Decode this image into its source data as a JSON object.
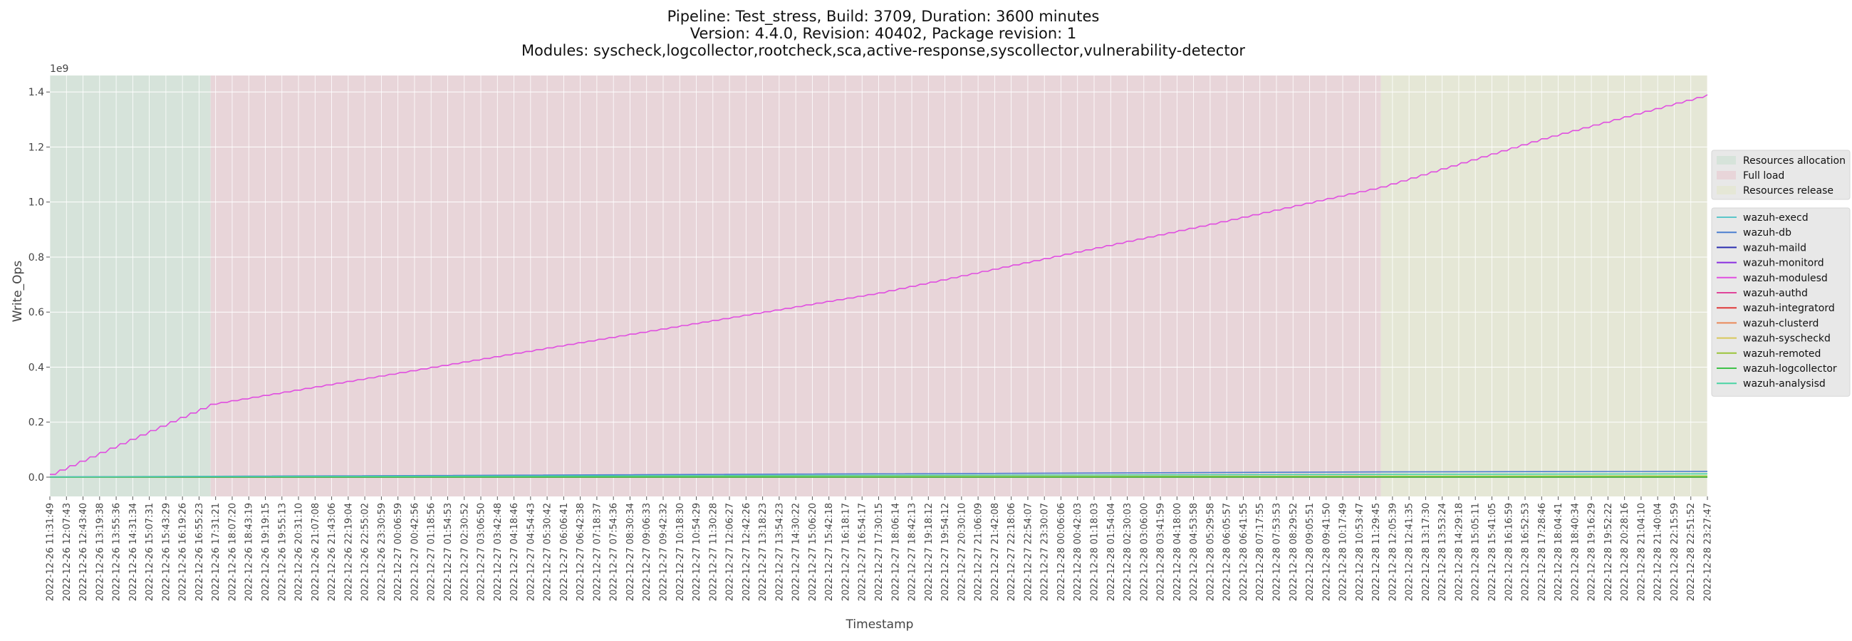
{
  "chart_data": {
    "type": "line",
    "title_lines": [
      "Pipeline: Test_stress, Build: 3709, Duration: 3600 minutes",
      "Version: 4.4.0, Revision: 40402, Package revision: 1",
      "Modules: syscheck,logcollector,rootcheck,sca,active-response,syscollector,vulnerability-detector"
    ],
    "xlabel": "Timestamp",
    "ylabel": "Write_Ops",
    "y_exponent_label": "1e9",
    "ylim": [
      -0.07,
      1.46
    ],
    "y_ticks": [
      {
        "value": 0.0,
        "label": "0.0"
      },
      {
        "value": 0.2,
        "label": "0.2"
      },
      {
        "value": 0.4,
        "label": "0.4"
      },
      {
        "value": 0.6,
        "label": "0.6"
      },
      {
        "value": 0.8,
        "label": "0.8"
      },
      {
        "value": 1.0,
        "label": "1.0"
      },
      {
        "value": 1.2,
        "label": "1.2"
      },
      {
        "value": 1.4,
        "label": "1.4"
      }
    ],
    "x_tick_labels": [
      "2022-12-26 11:31:49",
      "2022-12-26 12:07:43",
      "2022-12-26 12:43:40",
      "2022-12-26 13:19:38",
      "2022-12-26 13:55:36",
      "2022-12-26 14:31:34",
      "2022-12-26 15:07:31",
      "2022-12-26 15:43:29",
      "2022-12-26 16:19:26",
      "2022-12-26 16:55:23",
      "2022-12-26 17:31:21",
      "2022-12-26 18:07:20",
      "2022-12-26 18:43:19",
      "2022-12-26 19:19:15",
      "2022-12-26 19:55:13",
      "2022-12-26 20:31:10",
      "2022-12-26 21:07:08",
      "2022-12-26 21:43:06",
      "2022-12-26 22:19:04",
      "2022-12-26 22:55:02",
      "2022-12-26 23:30:59",
      "2022-12-27 00:06:59",
      "2022-12-27 00:42:56",
      "2022-12-27 01:18:56",
      "2022-12-27 01:54:53",
      "2022-12-27 02:30:52",
      "2022-12-27 03:06:50",
      "2022-12-27 03:42:48",
      "2022-12-27 04:18:46",
      "2022-12-27 04:54:43",
      "2022-12-27 05:30:42",
      "2022-12-27 06:06:41",
      "2022-12-27 06:42:38",
      "2022-12-27 07:18:37",
      "2022-12-27 07:54:36",
      "2022-12-27 08:30:34",
      "2022-12-27 09:06:33",
      "2022-12-27 09:42:32",
      "2022-12-27 10:18:30",
      "2022-12-27 10:54:29",
      "2022-12-27 11:30:28",
      "2022-12-27 12:06:27",
      "2022-12-27 12:42:26",
      "2022-12-27 13:18:23",
      "2022-12-27 13:54:23",
      "2022-12-27 14:30:22",
      "2022-12-27 15:06:20",
      "2022-12-27 15:42:18",
      "2022-12-27 16:18:17",
      "2022-12-27 16:54:17",
      "2022-12-27 17:30:15",
      "2022-12-27 18:06:14",
      "2022-12-27 18:42:13",
      "2022-12-27 19:18:12",
      "2022-12-27 19:54:12",
      "2022-12-27 20:30:10",
      "2022-12-27 21:06:09",
      "2022-12-27 21:42:08",
      "2022-12-27 22:18:06",
      "2022-12-27 22:54:07",
      "2022-12-27 23:30:07",
      "2022-12-28 00:06:06",
      "2022-12-28 00:42:03",
      "2022-12-28 01:18:03",
      "2022-12-28 01:54:04",
      "2022-12-28 02:30:03",
      "2022-12-28 03:06:00",
      "2022-12-28 03:41:59",
      "2022-12-28 04:18:00",
      "2022-12-28 04:53:58",
      "2022-12-28 05:29:58",
      "2022-12-28 06:05:57",
      "2022-12-28 06:41:55",
      "2022-12-28 07:17:55",
      "2022-12-28 07:53:53",
      "2022-12-28 08:29:52",
      "2022-12-28 09:05:51",
      "2022-12-28 09:41:50",
      "2022-12-28 10:17:49",
      "2022-12-28 10:53:47",
      "2022-12-28 11:29:45",
      "2022-12-28 12:05:39",
      "2022-12-28 12:41:35",
      "2022-12-28 13:17:30",
      "2022-12-28 13:53:24",
      "2022-12-28 14:29:18",
      "2022-12-28 15:05:11",
      "2022-12-28 15:41:05",
      "2022-12-28 16:16:59",
      "2022-12-28 16:52:53",
      "2022-12-28 17:28:46",
      "2022-12-28 18:04:41",
      "2022-12-28 18:40:34",
      "2022-12-28 19:16:29",
      "2022-12-28 19:52:22",
      "2022-12-28 20:28:16",
      "2022-12-28 21:04:10",
      "2022-12-28 21:40:04",
      "2022-12-28 22:15:59",
      "2022-12-28 22:51:52",
      "2022-12-28 23:27:47"
    ],
    "phases": [
      {
        "name": "Resources allocation",
        "start_tick": 0,
        "end_tick": 9.7,
        "color": "#d6e3da"
      },
      {
        "name": "Full load",
        "start_tick": 9.7,
        "end_tick": 80.3,
        "color": "#e8d5d9"
      },
      {
        "name": "Resources release",
        "start_tick": 80.3,
        "end_tick": 100,
        "color": "#e5e7d6"
      }
    ],
    "series": [
      {
        "name": "wazuh-execd",
        "color": "#5bc6c9",
        "points": [
          {
            "tick": 0,
            "value": 0.0002
          },
          {
            "tick": 100,
            "value": 0.0003
          }
        ]
      },
      {
        "name": "wazuh-db",
        "color": "#4c7fd0",
        "points": [
          {
            "tick": 0,
            "value": 0.001
          },
          {
            "tick": 9.7,
            "value": 0.003
          },
          {
            "tick": 80.3,
            "value": 0.019
          },
          {
            "tick": 100,
            "value": 0.021
          }
        ]
      },
      {
        "name": "wazuh-maild",
        "color": "#2c2fb0",
        "points": [
          {
            "tick": 0,
            "value": 0.0
          },
          {
            "tick": 100,
            "value": 0.0
          }
        ]
      },
      {
        "name": "wazuh-monitord",
        "color": "#8a2ee0",
        "points": [
          {
            "tick": 0,
            "value": 0.0
          },
          {
            "tick": 100,
            "value": 0.0001
          }
        ]
      },
      {
        "name": "wazuh-modulesd",
        "color": "#e04ee0",
        "stepped": true,
        "points": [
          {
            "tick": 0,
            "value": 0.01
          },
          {
            "tick": 9.7,
            "value": 0.265
          },
          {
            "tick": 30,
            "value": 0.47
          },
          {
            "tick": 50,
            "value": 0.67
          },
          {
            "tick": 70,
            "value": 0.92
          },
          {
            "tick": 80.3,
            "value": 1.055
          },
          {
            "tick": 90,
            "value": 1.23
          },
          {
            "tick": 100,
            "value": 1.39
          }
        ]
      },
      {
        "name": "wazuh-authd",
        "color": "#e0459a",
        "points": [
          {
            "tick": 0,
            "value": 0.0
          },
          {
            "tick": 100,
            "value": 0.0
          }
        ]
      },
      {
        "name": "wazuh-integratord",
        "color": "#e03a3a",
        "points": [
          {
            "tick": 0,
            "value": 0.0
          },
          {
            "tick": 100,
            "value": 0.0
          }
        ]
      },
      {
        "name": "wazuh-clusterd",
        "color": "#ea8a5a",
        "points": [
          {
            "tick": 0,
            "value": 0.0
          },
          {
            "tick": 100,
            "value": 0.0
          }
        ]
      },
      {
        "name": "wazuh-syscheckd",
        "color": "#d8c85a",
        "points": [
          {
            "tick": 0,
            "value": 0.0005
          },
          {
            "tick": 100,
            "value": 0.003
          }
        ]
      },
      {
        "name": "wazuh-remoted",
        "color": "#9bc43a",
        "points": [
          {
            "tick": 0,
            "value": 0.0003
          },
          {
            "tick": 100,
            "value": 0.004
          }
        ]
      },
      {
        "name": "wazuh-logcollector",
        "color": "#3fc24a",
        "points": [
          {
            "tick": 0,
            "value": 0.0
          },
          {
            "tick": 100,
            "value": 0.0001
          }
        ]
      },
      {
        "name": "wazuh-analysisd",
        "color": "#49d4a3",
        "points": [
          {
            "tick": 0,
            "value": 0.0005
          },
          {
            "tick": 9.7,
            "value": 0.002
          },
          {
            "tick": 80.3,
            "value": 0.01
          },
          {
            "tick": 100,
            "value": 0.012
          }
        ]
      }
    ],
    "grid": true,
    "legend_position": "right"
  }
}
